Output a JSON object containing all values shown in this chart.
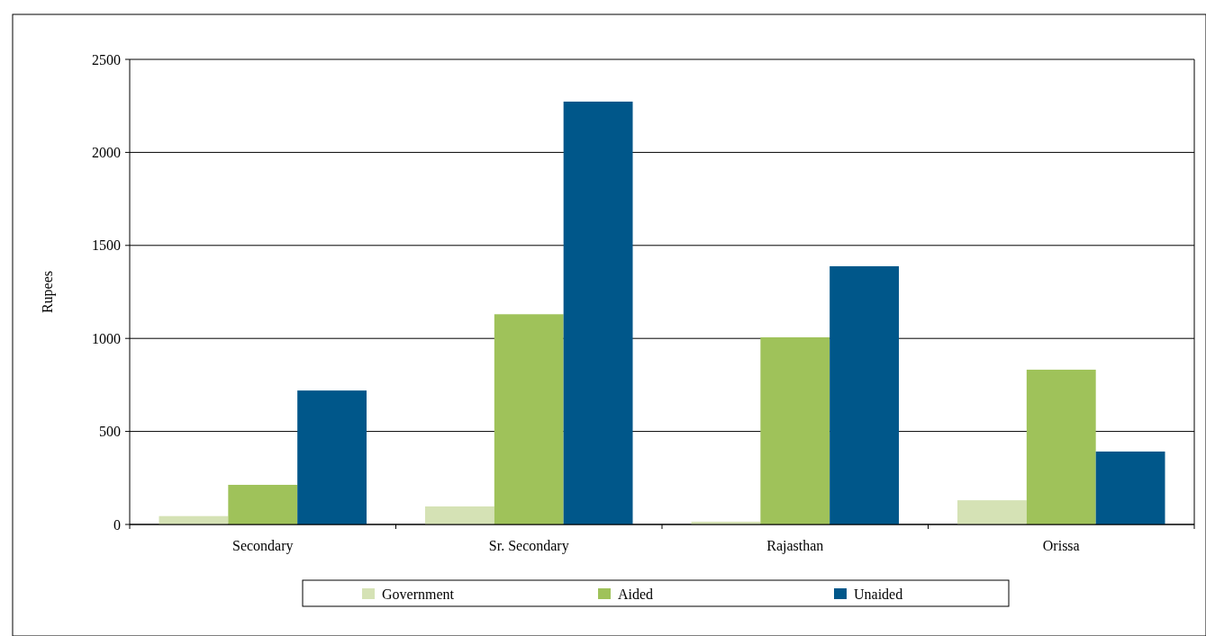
{
  "chart_data": {
    "type": "bar",
    "ylabel": "Rupees",
    "categories": [
      "Secondary",
      "Sr. Secondary",
      "Rajasthan",
      "Orissa"
    ],
    "series": [
      {
        "name": "Government",
        "color": "#d5e2b5",
        "values": [
          45,
          97,
          15,
          130
        ]
      },
      {
        "name": "Aided",
        "color": "#9fc25a",
        "values": [
          213,
          1130,
          1006,
          832
        ]
      },
      {
        "name": "Unaided",
        "color": "#00578a",
        "values": [
          720,
          2273,
          1388,
          392
        ]
      }
    ],
    "ylim": [
      0,
      2500
    ],
    "yticks": [
      0,
      500,
      1000,
      1500,
      2000,
      2500
    ],
    "grid": "y",
    "legend": "bottom"
  }
}
